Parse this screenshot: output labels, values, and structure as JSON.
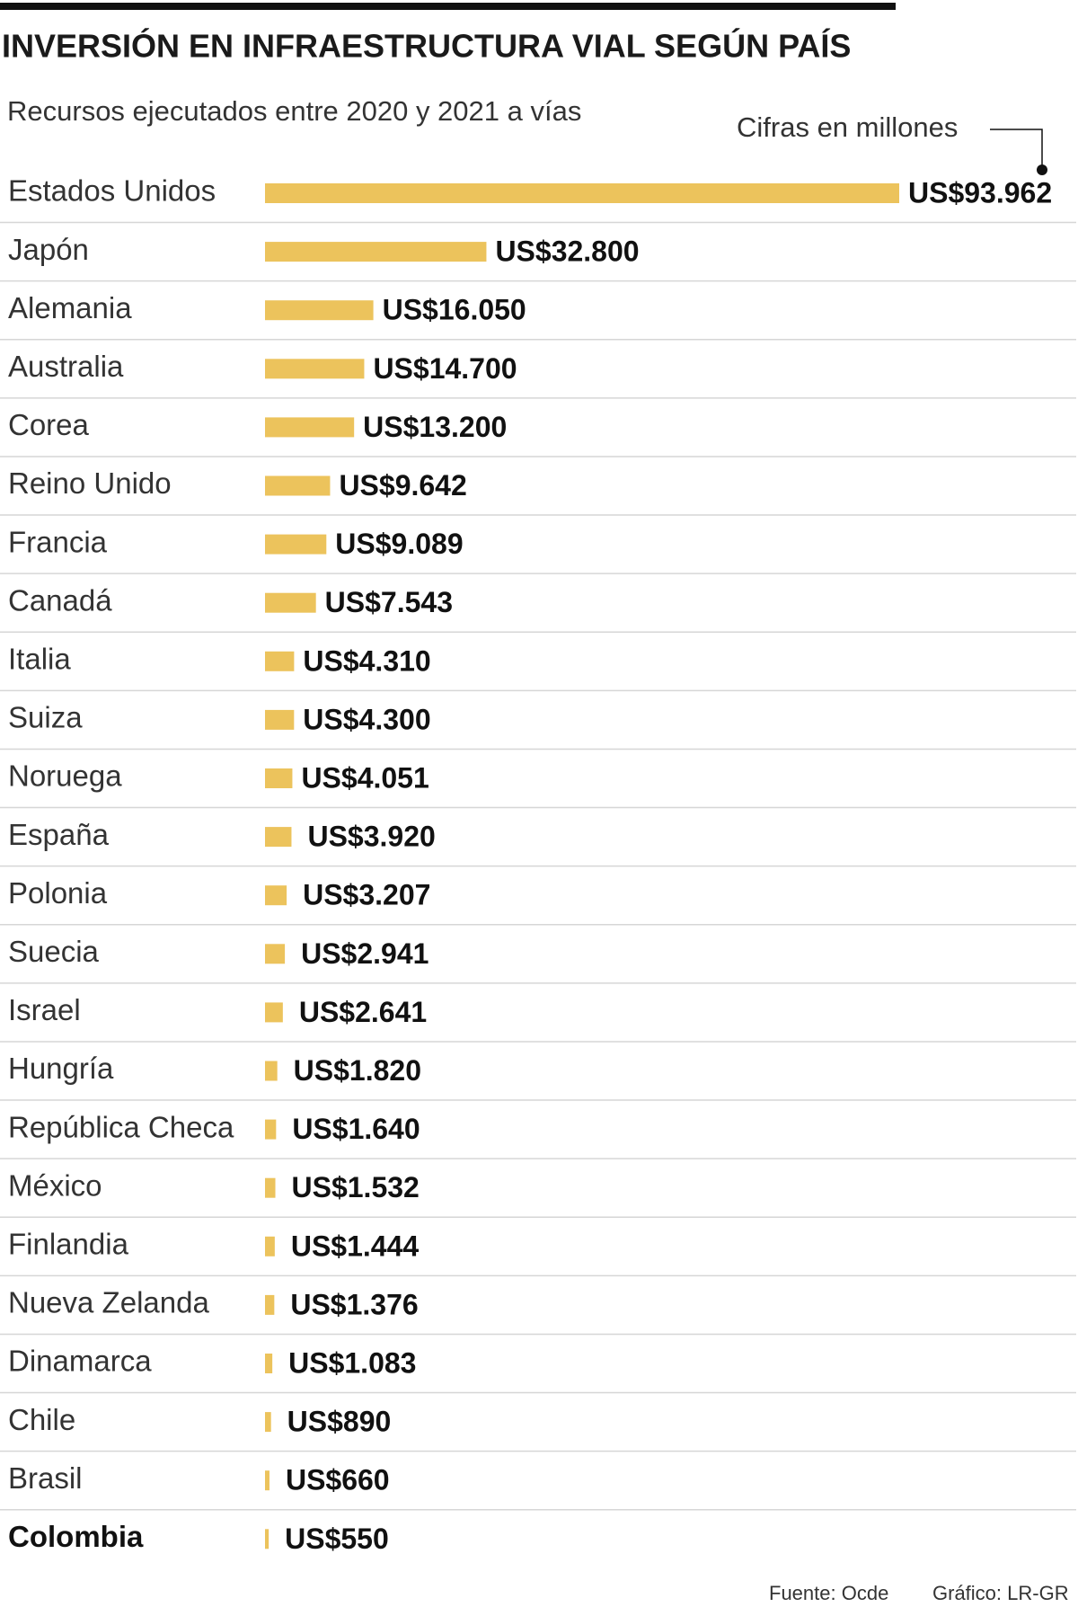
{
  "chart_data": {
    "type": "hbar",
    "title": "INVERSIÓN EN INFRAESTRUCTURA VIAL SEGÚN PAÍS",
    "subtitle": "Recursos ejecutados entre 2020 y 2021 a vías",
    "unit_note": "Cifras en millones",
    "source": "Fuente: Ocde",
    "credit": "Gráfico: LR-GR",
    "color": "#ecc35c",
    "categories": [
      "Estados Unidos",
      "Japón",
      "Alemania",
      "Australia",
      "Corea",
      "Reino Unido",
      "Francia",
      "Canadá",
      "Italia",
      "Suiza",
      "Noruega",
      "España",
      "Polonia",
      "Suecia",
      "Israel",
      "Hungría",
      "República Checa",
      "México",
      "Finlandia",
      "Nueva Zelanda",
      "Dinamarca",
      "Chile",
      "Brasil",
      "Colombia"
    ],
    "values": [
      93962,
      32800,
      16050,
      14700,
      13200,
      9642,
      9089,
      7543,
      4310,
      4300,
      4051,
      3920,
      3207,
      2941,
      2641,
      1820,
      1640,
      1532,
      1444,
      1376,
      1083,
      890,
      660,
      550
    ],
    "value_labels": [
      "US$93.962",
      "US$32.800",
      "US$16.050",
      "US$14.700",
      "US$13.200",
      "US$9.642",
      "US$9.089",
      "US$7.543",
      "US$4.310",
      "US$4.300",
      "US$4.051",
      "US$3.920",
      "US$3.207",
      "US$2.941",
      "US$2.641",
      "US$1.820",
      "US$1.640",
      "US$1.532",
      "US$1.444",
      "US$1.376",
      "US$1.083",
      "US$890",
      "US$660",
      "US$550"
    ]
  }
}
